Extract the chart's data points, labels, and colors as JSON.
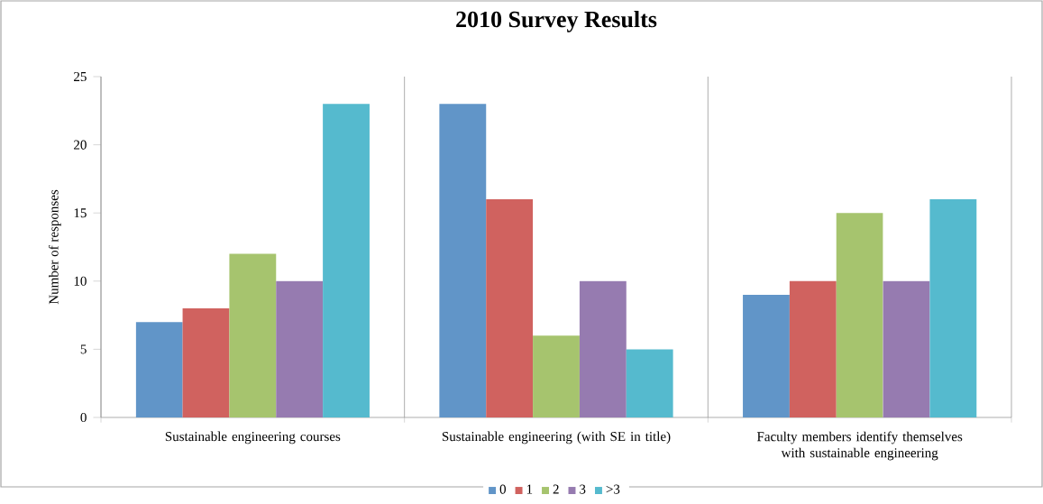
{
  "chart_data": {
    "type": "bar",
    "title": "2010 Survey Results",
    "ylabel": "Number of responses",
    "categories": [
      "Sustainable engineering courses",
      "Sustainable engineering (with SE in title)",
      "Faculty members identify themselves with sustainable engineering"
    ],
    "series": [
      {
        "name": "0",
        "color": "#6195c8",
        "values": [
          7,
          23,
          9
        ]
      },
      {
        "name": "1",
        "color": "#d0625f",
        "values": [
          8,
          16,
          10
        ]
      },
      {
        "name": "2",
        "color": "#a6c46e",
        "values": [
          12,
          6,
          15
        ]
      },
      {
        "name": "3",
        "color": "#967bb0",
        "values": [
          10,
          10,
          10
        ]
      },
      {
        "name": ">3",
        "color": "#55bace",
        "values": [
          23,
          5,
          16
        ]
      }
    ],
    "ylim": [
      0,
      25
    ],
    "yticks": [
      0,
      5,
      10,
      15,
      20,
      25
    ],
    "grid": "x",
    "legend": "bottom"
  }
}
